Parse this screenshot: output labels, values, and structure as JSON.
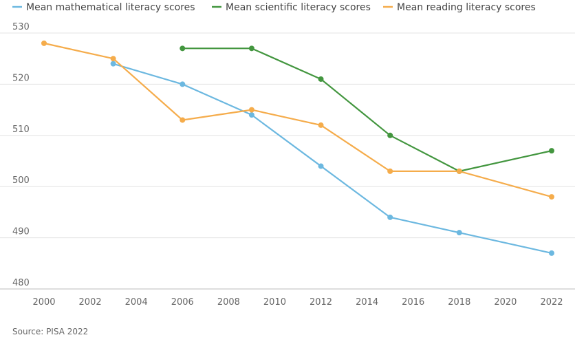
{
  "chart_data": {
    "type": "line",
    "x": [
      2000,
      2003,
      2006,
      2009,
      2012,
      2015,
      2018,
      2022
    ],
    "series": [
      {
        "name": "Mean mathematical literacy scores",
        "color": "#6cb8e0",
        "values": [
          null,
          524,
          520,
          514,
          504,
          494,
          491,
          487
        ]
      },
      {
        "name": "Mean scientific literacy scores",
        "color": "#43963f",
        "values": [
          null,
          null,
          527,
          527,
          521,
          510,
          503,
          507
        ]
      },
      {
        "name": "Mean reading literacy scores",
        "color": "#f5ac4b",
        "values": [
          528,
          525,
          513,
          515,
          512,
          503,
          503,
          498
        ]
      }
    ],
    "xlim": [
      2000,
      2022
    ],
    "ylim": [
      480,
      530
    ],
    "xticks": [
      "2000",
      "2002",
      "2004",
      "2006",
      "2008",
      "2010",
      "2012",
      "2014",
      "2016",
      "2018",
      "2020",
      "2022"
    ],
    "yticks": [
      "480",
      "490",
      "500",
      "510",
      "520",
      "530"
    ],
    "grid": "horizontal",
    "legend_position": "top-left",
    "source": "Source: PISA 2022"
  }
}
